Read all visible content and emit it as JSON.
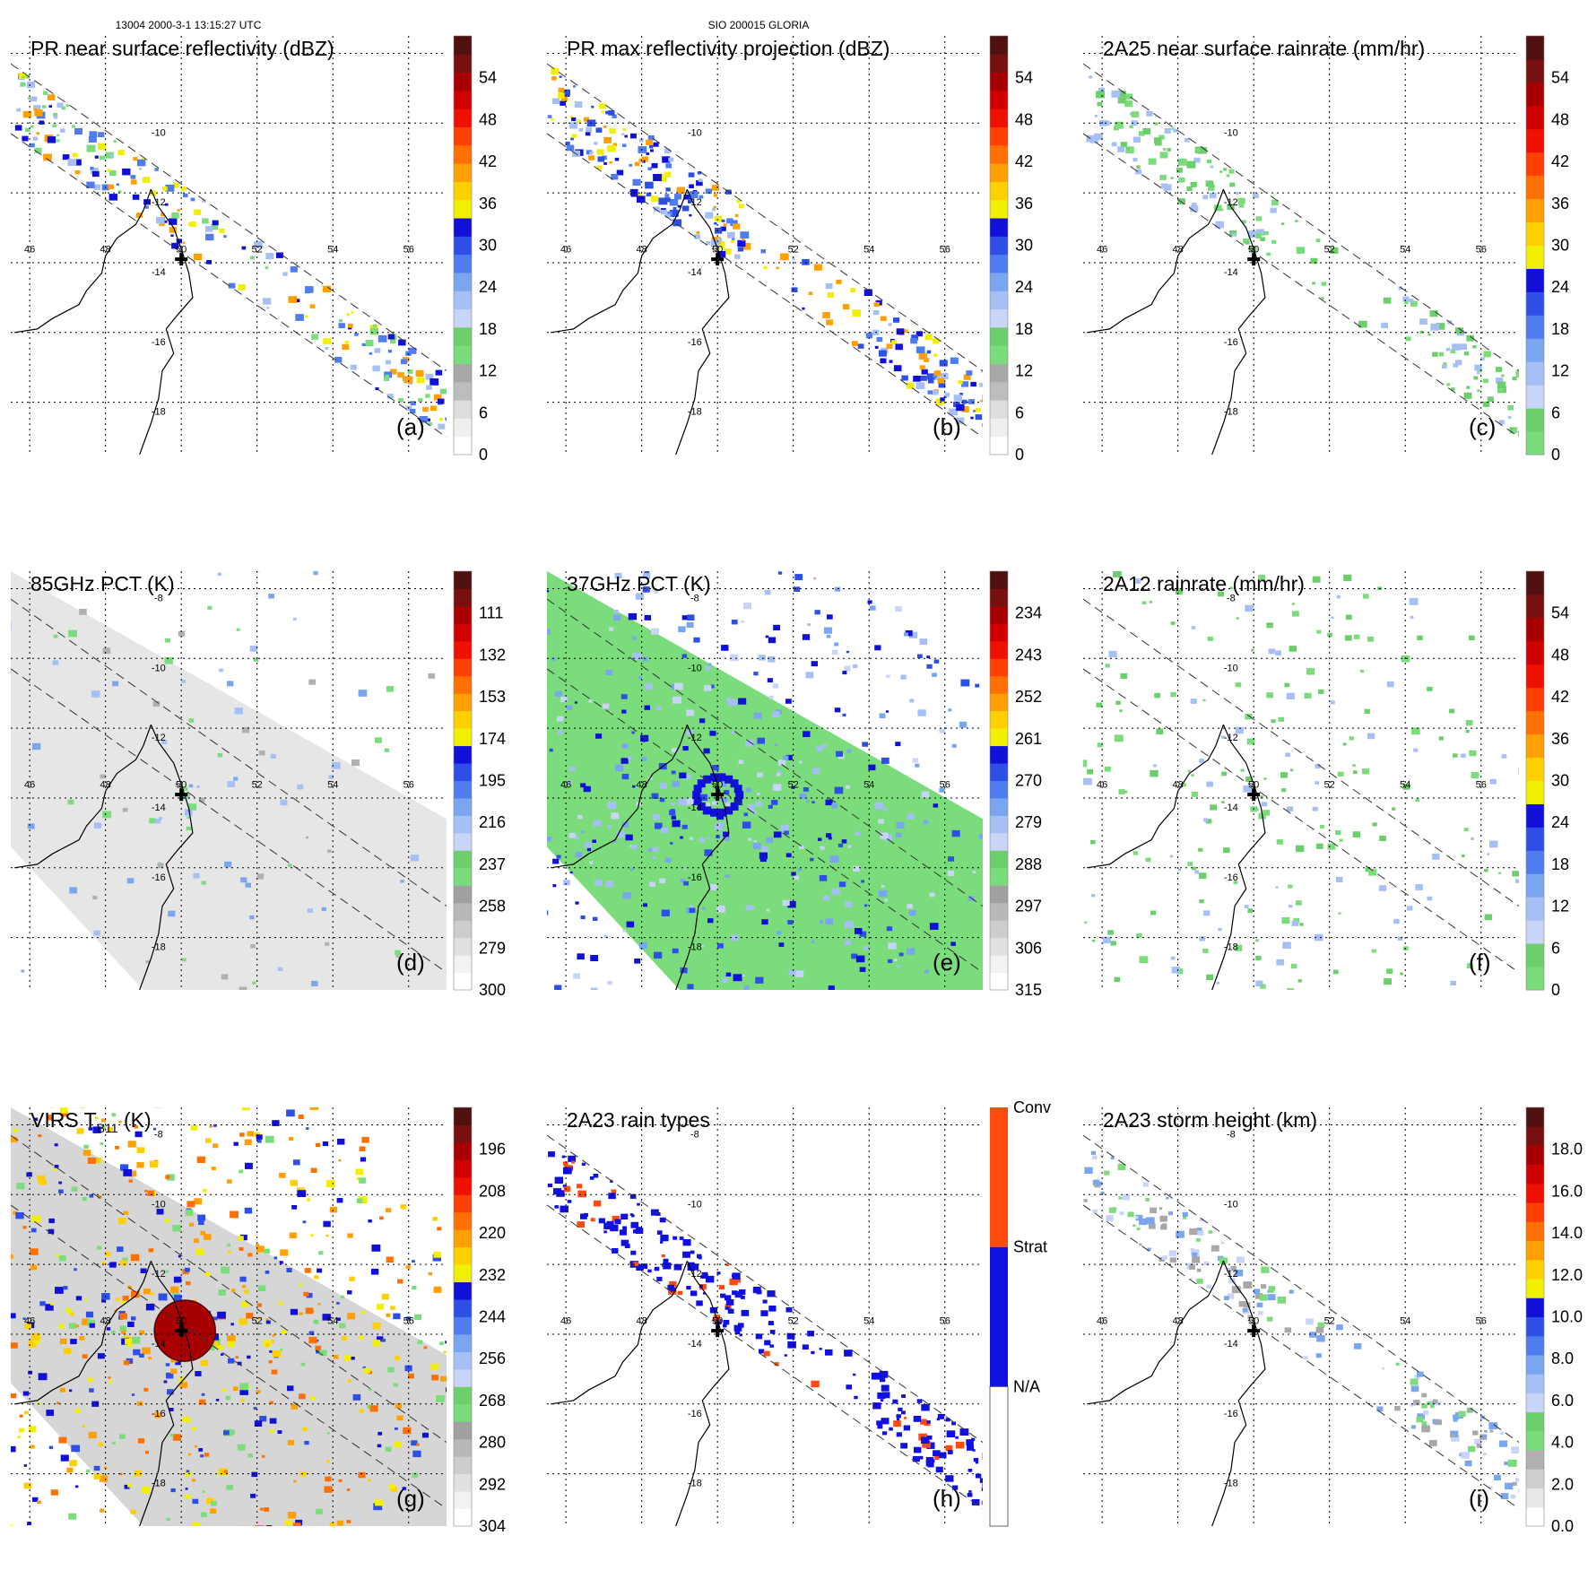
{
  "header": {
    "left": "13004 2000-3-1 13:15:27 UTC",
    "center": "SIO 200015 GLORIA"
  },
  "colors": {
    "dbz": [
      "#ffffff",
      "#efefef",
      "#dedede",
      "#bdbdbd",
      "#a8a8a8",
      "#7bdc7b",
      "#6ccf6c",
      "#c8d4f8",
      "#a6c0f6",
      "#7aa6f0",
      "#4f7df0",
      "#2d4fe6",
      "#1010d8",
      "#f0f000",
      "#ffd000",
      "#ffa000",
      "#ff7000",
      "#ff4000",
      "#f01000",
      "#d00000",
      "#a80000",
      "#781010",
      "#501010"
    ],
    "rain": [
      "#7bdc7b",
      "#6ccf6c",
      "#c8d4f8",
      "#a6c0f6",
      "#7aa6f0",
      "#4f7df0",
      "#2d4fe6",
      "#1010d8",
      "#f0f000",
      "#ffd000",
      "#ffa000",
      "#ff7000",
      "#ff4000",
      "#f01000",
      "#d00000",
      "#a80000",
      "#781010",
      "#501010"
    ],
    "rain_types": [
      "#ffffff",
      "#1010e0",
      "#ff4a10"
    ],
    "land": "#000000",
    "grid": "#000000"
  },
  "panels": [
    {
      "id": "a",
      "label": "(a)",
      "title": "PR near surface reflectivity (dBZ)",
      "colorbar": {
        "kind": "dbz",
        "ticks": [
          "0",
          "6",
          "12",
          "18",
          "24",
          "30",
          "36",
          "42",
          "48",
          "54"
        ]
      },
      "lat_labels": [
        "-10",
        "-12",
        "-14",
        "-16",
        "-18"
      ],
      "lon_labels": [
        "46",
        "48",
        "50",
        "52",
        "54",
        "56"
      ]
    },
    {
      "id": "b",
      "label": "(b)",
      "title": "PR max reflectivity projection (dBZ)",
      "colorbar": {
        "kind": "dbz",
        "ticks": [
          "0",
          "6",
          "12",
          "18",
          "24",
          "30",
          "36",
          "42",
          "48",
          "54"
        ]
      },
      "lat_labels": [
        "-10",
        "-12",
        "-14",
        "-16",
        "-18"
      ],
      "lon_labels": [
        "46",
        "48",
        "50",
        "52",
        "54",
        "56"
      ]
    },
    {
      "id": "c",
      "label": "(c)",
      "title": "2A25 near surface rainrate (mm/hr)",
      "colorbar": {
        "kind": "rain",
        "ticks": [
          "0",
          "6",
          "12",
          "18",
          "24",
          "30",
          "36",
          "42",
          "48",
          "54"
        ]
      },
      "lat_labels": [
        "-10",
        "-12",
        "-14",
        "-16",
        "-18"
      ],
      "lon_labels": [
        "46",
        "48",
        "50",
        "52",
        "54",
        "56"
      ]
    },
    {
      "id": "d",
      "label": "(d)",
      "title": "85GHz PCT (K)",
      "colorbar": {
        "kind": "pct",
        "ticks": [
          "300",
          "279",
          "258",
          "237",
          "216",
          "195",
          "174",
          "153",
          "132",
          "111"
        ]
      },
      "lat_labels": [
        "-8",
        "-10",
        "-12",
        "-14",
        "-16",
        "-18"
      ],
      "lon_labels": [
        "46",
        "48",
        "50",
        "52",
        "54",
        "56"
      ]
    },
    {
      "id": "e",
      "label": "(e)",
      "title": "37GHz PCT (K)",
      "colorbar": {
        "kind": "pct",
        "ticks": [
          "315",
          "306",
          "297",
          "288",
          "279",
          "270",
          "261",
          "252",
          "243",
          "234"
        ]
      },
      "lat_labels": [
        "-8",
        "-10",
        "-12",
        "-14",
        "-16",
        "-18"
      ],
      "lon_labels": [
        "46",
        "48",
        "50",
        "52",
        "54",
        "56"
      ]
    },
    {
      "id": "f",
      "label": "(f)",
      "title": "2A12 rainrate (mm/hr)",
      "colorbar": {
        "kind": "rain",
        "ticks": [
          "0",
          "6",
          "12",
          "18",
          "24",
          "30",
          "36",
          "42",
          "48",
          "54"
        ]
      },
      "lat_labels": [
        "-8",
        "-10",
        "-12",
        "-14",
        "-16",
        "-18"
      ],
      "lon_labels": [
        "46",
        "48",
        "50",
        "52",
        "54",
        "56"
      ]
    },
    {
      "id": "g",
      "label": "(g)",
      "title_main": "VIRS T",
      "title_sub": "B11",
      "title_unit": " (K)",
      "colorbar": {
        "kind": "pct",
        "ticks": [
          "304",
          "292",
          "280",
          "268",
          "256",
          "244",
          "232",
          "220",
          "208",
          "196"
        ]
      },
      "lat_labels": [
        "-8",
        "-10",
        "-12",
        "-14",
        "-16",
        "-18"
      ],
      "lon_labels": [
        "46",
        "48",
        "50",
        "52",
        "54",
        "56"
      ]
    },
    {
      "id": "h",
      "label": "(h)",
      "title": "2A23 rain types",
      "colorbar": {
        "kind": "types",
        "ticks": [
          "N/A",
          "Strat",
          "Conv"
        ]
      },
      "lat_labels": [
        "-8",
        "-10",
        "-12",
        "-14",
        "-16",
        "-18"
      ],
      "lon_labels": [
        "46",
        "48",
        "50",
        "52",
        "54",
        "56"
      ]
    },
    {
      "id": "i",
      "label": "(i)",
      "title": "2A23 storm height (km)",
      "colorbar": {
        "kind": "height",
        "ticks": [
          "0.0",
          "2.0",
          "4.0",
          "6.0",
          "8.0",
          "10.0",
          "12.0",
          "14.0",
          "16.0",
          "18.0"
        ]
      },
      "lat_labels": [
        "-8",
        "-10",
        "-12",
        "-14",
        "-16",
        "-18"
      ],
      "lon_labels": [
        "46",
        "48",
        "50",
        "52",
        "54",
        "56"
      ]
    }
  ],
  "chart_data": {
    "type": "heatmap",
    "title": "SIO 200015 GLORIA — TRMM orbit 13004, 2000-3-1 13:15:27 UTC",
    "storm_center": {
      "lon": 50.0,
      "lat": -13.9
    },
    "lon_range": [
      45.5,
      57.0
    ],
    "lat_range": [
      -19.5,
      -7.5
    ],
    "panels": [
      "PR near surface reflectivity (dBZ)",
      "PR max reflectivity projection (dBZ)",
      "2A25 near surface rainrate (mm/hr)",
      "85GHz PCT (K)",
      "37GHz PCT (K)",
      "2A12 rainrate (mm/hr)",
      "VIRS TB11 (K)",
      "2A23 rain types",
      "2A23 storm height (km)"
    ],
    "colorbar_ranges": {
      "dbz": [
        0,
        60
      ],
      "rainrate": [
        0,
        60
      ],
      "pct85": [
        300,
        90
      ],
      "pct37": [
        315,
        225
      ],
      "tb11": [
        304,
        184
      ],
      "storm_height": [
        0.0,
        20.0
      ]
    }
  }
}
